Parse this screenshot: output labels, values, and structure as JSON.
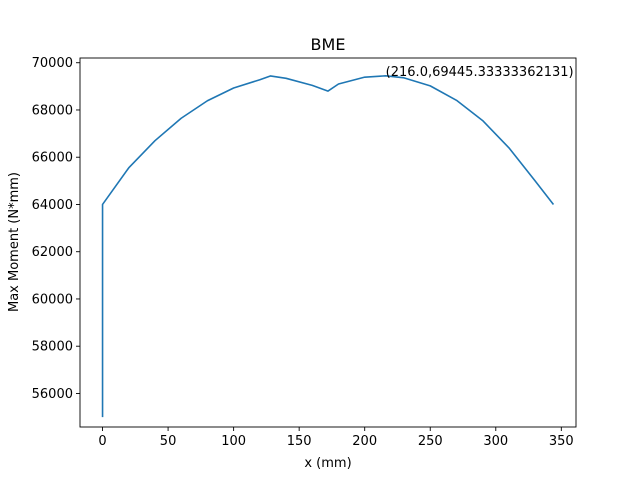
{
  "chart_data": {
    "type": "line",
    "title": "BME",
    "xlabel": "x (mm)",
    "ylabel": "Max Moment (N*mm)",
    "xlim": [
      -17.2,
      361.2
    ],
    "ylim": [
      54580,
      70200
    ],
    "xticks": [
      0,
      50,
      100,
      150,
      200,
      250,
      300,
      350
    ],
    "yticks": [
      56000,
      58000,
      60000,
      62000,
      64000,
      66000,
      68000,
      70000
    ],
    "grid": false,
    "color": "#1f77b4",
    "series": [
      {
        "x": [
          0,
          0,
          20,
          40,
          60,
          80,
          100,
          120,
          128,
          140,
          160,
          172,
          180,
          200,
          216,
          230,
          250,
          270,
          290,
          310,
          330,
          344
        ],
        "y": [
          55000,
          64000,
          65550,
          66700,
          67650,
          68390,
          68930,
          69280,
          69440,
          69340,
          69040,
          68800,
          69100,
          69390,
          69445,
          69360,
          69020,
          68410,
          67550,
          66400,
          65000,
          64000
        ]
      }
    ],
    "annotations": [
      {
        "text": "(216.0,69445.33333362131)",
        "x": 216.0,
        "y": 69445.33333362131
      }
    ]
  }
}
